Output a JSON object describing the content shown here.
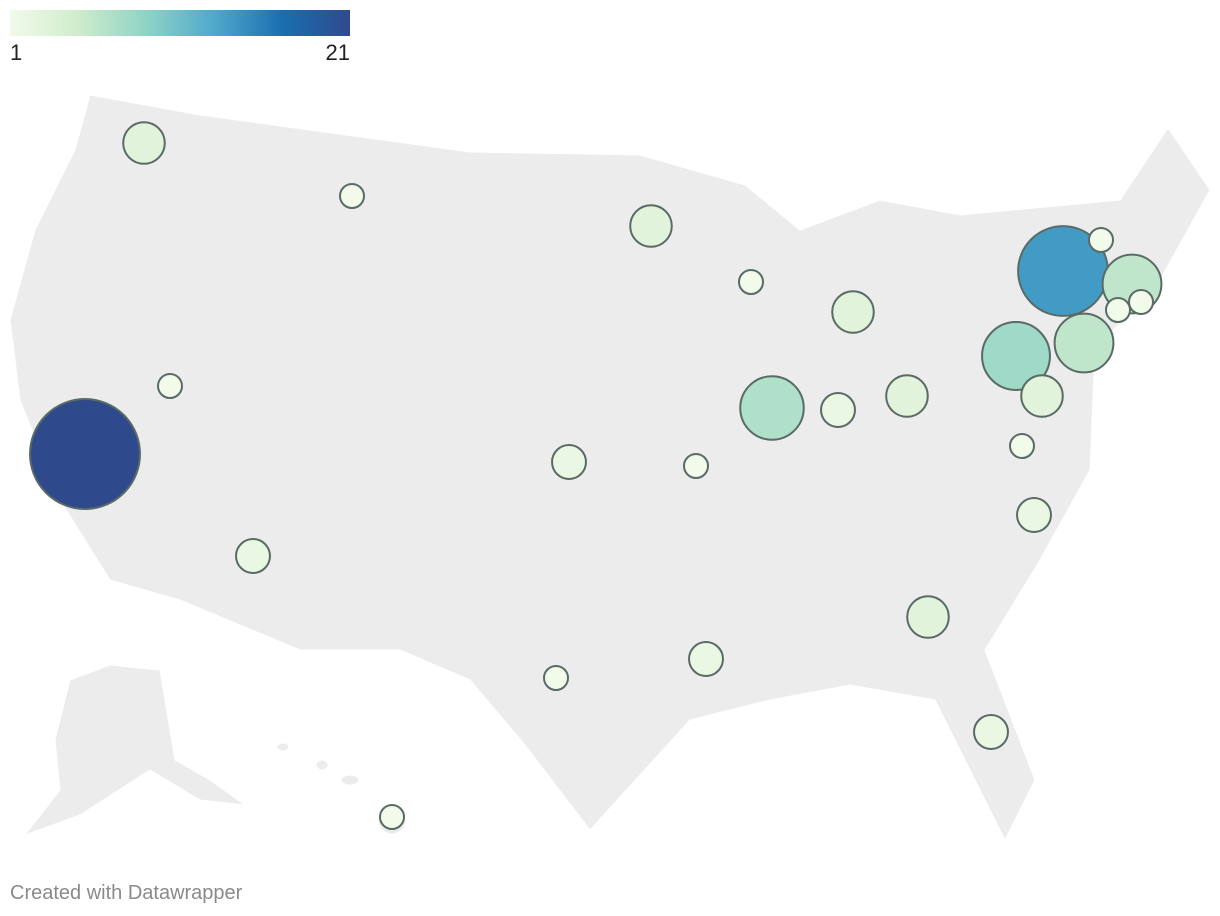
{
  "legend": {
    "min": 1,
    "max": 21,
    "colors": [
      "#f2faea",
      "#cfeccc",
      "#8fd3c6",
      "#4fa9cc",
      "#1a6fb0",
      "#2f4a8c"
    ]
  },
  "bubbles": {
    "values": [
      21,
      14,
      8,
      7,
      6,
      6,
      3,
      3,
      3,
      3,
      3,
      3,
      2,
      2,
      2,
      2,
      2,
      2,
      1,
      1,
      1,
      1,
      1,
      1,
      1,
      1,
      1,
      1
    ]
  },
  "footer": "Created with Datawrapper"
}
